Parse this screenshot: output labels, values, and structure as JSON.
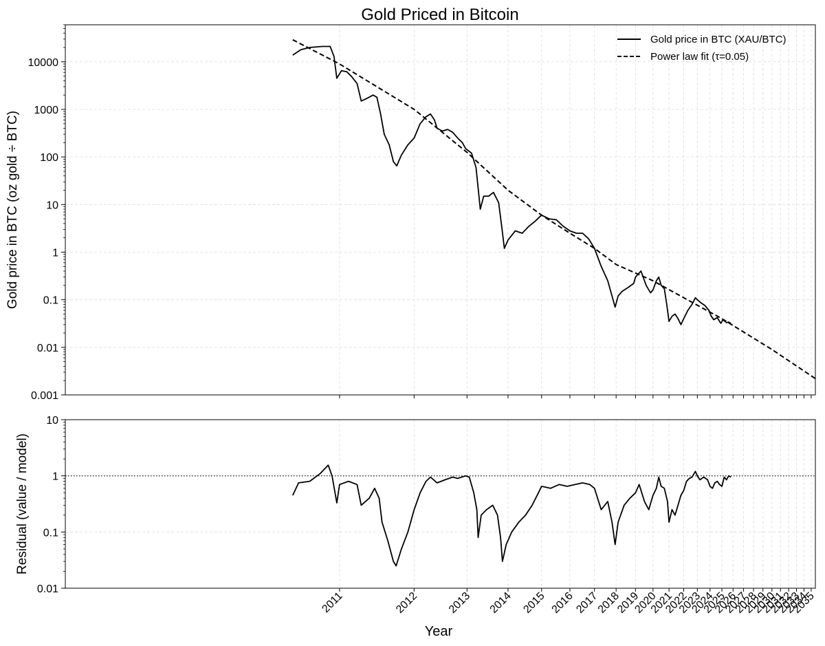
{
  "chart_data": [
    {
      "type": "line",
      "title": "Gold Priced in Bitcoin",
      "ylabel": "Gold price in BTC (oz gold ÷ BTC)",
      "yscale": "log",
      "ylim": [
        0.001,
        60000
      ],
      "xscale": "log of years since genesis",
      "xlim": [
        2009.45,
        2035.6
      ],
      "grid": true,
      "legend_position": "top-right",
      "yticks": [
        {
          "value": 0.001,
          "label": "0.001"
        },
        {
          "value": 0.01,
          "label": "0.01"
        },
        {
          "value": 0.1,
          "label": "0.1"
        },
        {
          "value": 1,
          "label": "1"
        },
        {
          "value": 10,
          "label": "10"
        },
        {
          "value": 100,
          "label": "100"
        },
        {
          "value": 1000,
          "label": "1000"
        },
        {
          "value": 10000,
          "label": "10000"
        }
      ],
      "series": [
        {
          "name": "Gold price in BTC (XAU/BTC)",
          "style": "solid",
          "color": "#000000",
          "points": [
            [
              2010.55,
              13800
            ],
            [
              2010.62,
              18000
            ],
            [
              2010.7,
              20000
            ],
            [
              2010.82,
              21000
            ],
            [
              2010.9,
              21000
            ],
            [
              2010.94,
              13000
            ],
            [
              2010.97,
              4500
            ],
            [
              2011.02,
              6500
            ],
            [
              2011.08,
              6200
            ],
            [
              2011.13,
              5000
            ],
            [
              2011.2,
              3500
            ],
            [
              2011.25,
              1500
            ],
            [
              2011.32,
              1700
            ],
            [
              2011.4,
              2000
            ],
            [
              2011.45,
              1800
            ],
            [
              2011.5,
              800
            ],
            [
              2011.55,
              300
            ],
            [
              2011.62,
              180
            ],
            [
              2011.68,
              80
            ],
            [
              2011.73,
              65
            ],
            [
              2011.8,
              110
            ],
            [
              2011.9,
              180
            ],
            [
              2012.0,
              250
            ],
            [
              2012.1,
              500
            ],
            [
              2012.2,
              700
            ],
            [
              2012.28,
              800
            ],
            [
              2012.35,
              600
            ],
            [
              2012.4,
              400
            ],
            [
              2012.5,
              350
            ],
            [
              2012.6,
              380
            ],
            [
              2012.7,
              330
            ],
            [
              2012.8,
              250
            ],
            [
              2012.9,
              200
            ],
            [
              2012.97,
              150
            ],
            [
              2013.1,
              120
            ],
            [
              2013.2,
              60
            ],
            [
              2013.25,
              22
            ],
            [
              2013.3,
              8
            ],
            [
              2013.38,
              15
            ],
            [
              2013.5,
              15
            ],
            [
              2013.62,
              18
            ],
            [
              2013.75,
              11
            ],
            [
              2013.84,
              3
            ],
            [
              2013.9,
              1.2
            ],
            [
              2014.0,
              1.8
            ],
            [
              2014.2,
              2.8
            ],
            [
              2014.4,
              2.5
            ],
            [
              2014.6,
              3.5
            ],
            [
              2014.8,
              4.5
            ],
            [
              2015.0,
              6.0
            ],
            [
              2015.25,
              5.0
            ],
            [
              2015.5,
              4.8
            ],
            [
              2015.75,
              3.5
            ],
            [
              2016.0,
              2.8
            ],
            [
              2016.25,
              2.5
            ],
            [
              2016.5,
              2.5
            ],
            [
              2016.75,
              1.9
            ],
            [
              2017.0,
              1.2
            ],
            [
              2017.3,
              0.5
            ],
            [
              2017.6,
              0.25
            ],
            [
              2017.8,
              0.12
            ],
            [
              2017.95,
              0.07
            ],
            [
              2018.1,
              0.12
            ],
            [
              2018.3,
              0.15
            ],
            [
              2018.6,
              0.18
            ],
            [
              2018.9,
              0.22
            ],
            [
              2019.0,
              0.3
            ],
            [
              2019.3,
              0.4
            ],
            [
              2019.6,
              0.2
            ],
            [
              2019.85,
              0.14
            ],
            [
              2020.0,
              0.16
            ],
            [
              2020.2,
              0.25
            ],
            [
              2020.35,
              0.3
            ],
            [
              2020.5,
              0.2
            ],
            [
              2020.7,
              0.17
            ],
            [
              2020.85,
              0.08
            ],
            [
              2021.0,
              0.035
            ],
            [
              2021.2,
              0.045
            ],
            [
              2021.4,
              0.05
            ],
            [
              2021.6,
              0.04
            ],
            [
              2021.8,
              0.03
            ],
            [
              2022.0,
              0.04
            ],
            [
              2022.3,
              0.06
            ],
            [
              2022.6,
              0.08
            ],
            [
              2022.85,
              0.11
            ],
            [
              2023.0,
              0.1
            ],
            [
              2023.3,
              0.085
            ],
            [
              2023.6,
              0.075
            ],
            [
              2023.9,
              0.06
            ],
            [
              2024.1,
              0.045
            ],
            [
              2024.3,
              0.038
            ],
            [
              2024.6,
              0.042
            ],
            [
              2024.9,
              0.032
            ],
            [
              2025.1,
              0.038
            ],
            [
              2025.4,
              0.033
            ],
            [
              2025.6,
              0.034
            ],
            [
              2025.8,
              0.032
            ]
          ]
        },
        {
          "name": "Power law fit (τ=0.05)",
          "style": "dashed",
          "color": "#000000",
          "points": [
            [
              2010.55,
              29000
            ],
            [
              2011.0,
              9000
            ],
            [
              2012.0,
              1000
            ],
            [
              2013.0,
              125
            ],
            [
              2014.0,
              20
            ],
            [
              2015.0,
              6.0
            ],
            [
              2016.0,
              2.5
            ],
            [
              2017.0,
              1.2
            ],
            [
              2018.0,
              0.55
            ],
            [
              2020.0,
              0.25
            ],
            [
              2022.0,
              0.11
            ],
            [
              2025.0,
              0.04
            ],
            [
              2030.0,
              0.009
            ],
            [
              2035.6,
              0.0022
            ]
          ]
        }
      ]
    },
    {
      "type": "line",
      "xlabel": "Year",
      "ylabel": "Residual (value / model)",
      "yscale": "log",
      "ylim": [
        0.01,
        10
      ],
      "xscale": "log of years since genesis",
      "xlim": [
        2009.45,
        2035.6
      ],
      "grid": true,
      "reference_line": {
        "value": 1,
        "style": "dotted"
      },
      "yticks": [
        {
          "value": 0.01,
          "label": "0.01"
        },
        {
          "value": 0.1,
          "label": "0.1"
        },
        {
          "value": 1,
          "label": "1"
        },
        {
          "value": 10,
          "label": "10"
        }
      ],
      "xticks": [
        "2011",
        "2012",
        "2013",
        "2014",
        "2015",
        "2016",
        "2017",
        "2018",
        "2019",
        "2020",
        "2021",
        "2022",
        "2023",
        "2024",
        "2025",
        "2026",
        "2027",
        "2028",
        "2029",
        "2030",
        "2031",
        "2032",
        "2033",
        "2034",
        "2035"
      ],
      "series": [
        {
          "name": "",
          "style": "solid",
          "color": "#000000",
          "points": [
            [
              2010.55,
              0.45
            ],
            [
              2010.6,
              0.75
            ],
            [
              2010.7,
              0.8
            ],
            [
              2010.8,
              1.1
            ],
            [
              2010.88,
              1.55
            ],
            [
              2010.92,
              1.0
            ],
            [
              2010.97,
              0.33
            ],
            [
              2011.0,
              0.7
            ],
            [
              2011.1,
              0.8
            ],
            [
              2011.2,
              0.7
            ],
            [
              2011.25,
              0.3
            ],
            [
              2011.35,
              0.4
            ],
            [
              2011.42,
              0.6
            ],
            [
              2011.48,
              0.4
            ],
            [
              2011.52,
              0.15
            ],
            [
              2011.6,
              0.07
            ],
            [
              2011.68,
              0.03
            ],
            [
              2011.72,
              0.025
            ],
            [
              2011.8,
              0.05
            ],
            [
              2011.9,
              0.1
            ],
            [
              2012.0,
              0.25
            ],
            [
              2012.1,
              0.5
            ],
            [
              2012.2,
              0.8
            ],
            [
              2012.28,
              0.95
            ],
            [
              2012.4,
              0.75
            ],
            [
              2012.55,
              0.85
            ],
            [
              2012.7,
              0.95
            ],
            [
              2012.8,
              0.9
            ],
            [
              2012.97,
              1.0
            ],
            [
              2013.05,
              0.95
            ],
            [
              2013.15,
              0.5
            ],
            [
              2013.22,
              0.25
            ],
            [
              2013.25,
              0.08
            ],
            [
              2013.32,
              0.2
            ],
            [
              2013.45,
              0.25
            ],
            [
              2013.6,
              0.3
            ],
            [
              2013.72,
              0.2
            ],
            [
              2013.8,
              0.08
            ],
            [
              2013.85,
              0.03
            ],
            [
              2013.95,
              0.06
            ],
            [
              2014.1,
              0.1
            ],
            [
              2014.3,
              0.15
            ],
            [
              2014.5,
              0.2
            ],
            [
              2014.7,
              0.3
            ],
            [
              2014.9,
              0.5
            ],
            [
              2015.0,
              0.65
            ],
            [
              2015.3,
              0.6
            ],
            [
              2015.6,
              0.7
            ],
            [
              2015.9,
              0.65
            ],
            [
              2016.2,
              0.7
            ],
            [
              2016.5,
              0.75
            ],
            [
              2016.8,
              0.7
            ],
            [
              2017.0,
              0.6
            ],
            [
              2017.3,
              0.25
            ],
            [
              2017.6,
              0.35
            ],
            [
              2017.8,
              0.15
            ],
            [
              2017.95,
              0.06
            ],
            [
              2018.1,
              0.15
            ],
            [
              2018.4,
              0.3
            ],
            [
              2018.7,
              0.4
            ],
            [
              2019.0,
              0.5
            ],
            [
              2019.2,
              0.7
            ],
            [
              2019.5,
              0.35
            ],
            [
              2019.75,
              0.25
            ],
            [
              2020.0,
              0.45
            ],
            [
              2020.2,
              0.6
            ],
            [
              2020.35,
              0.95
            ],
            [
              2020.5,
              0.65
            ],
            [
              2020.7,
              0.6
            ],
            [
              2020.9,
              0.35
            ],
            [
              2021.0,
              0.15
            ],
            [
              2021.2,
              0.25
            ],
            [
              2021.4,
              0.2
            ],
            [
              2021.6,
              0.3
            ],
            [
              2021.8,
              0.45
            ],
            [
              2022.0,
              0.55
            ],
            [
              2022.2,
              0.8
            ],
            [
              2022.4,
              0.9
            ],
            [
              2022.6,
              0.95
            ],
            [
              2022.85,
              1.2
            ],
            [
              2023.0,
              1.0
            ],
            [
              2023.2,
              0.85
            ],
            [
              2023.5,
              0.95
            ],
            [
              2023.8,
              0.85
            ],
            [
              2024.0,
              0.65
            ],
            [
              2024.2,
              0.6
            ],
            [
              2024.4,
              0.75
            ],
            [
              2024.6,
              0.8
            ],
            [
              2024.8,
              0.7
            ],
            [
              2025.0,
              0.65
            ],
            [
              2025.2,
              0.95
            ],
            [
              2025.4,
              0.85
            ],
            [
              2025.6,
              1.0
            ],
            [
              2025.8,
              0.95
            ]
          ]
        }
      ]
    }
  ]
}
